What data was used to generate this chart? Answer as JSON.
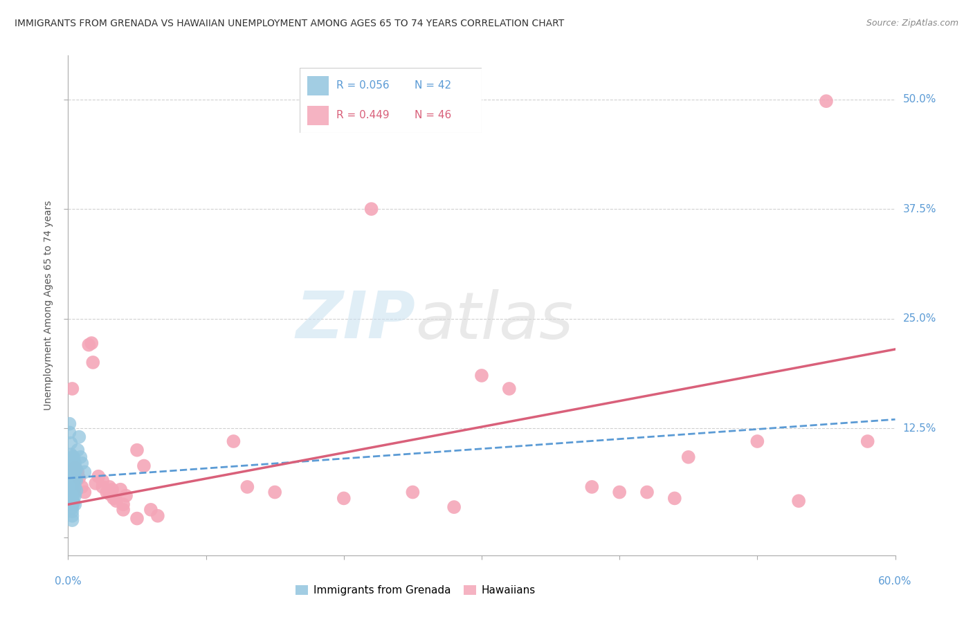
{
  "title": "IMMIGRANTS FROM GRENADA VS HAWAIIAN UNEMPLOYMENT AMONG AGES 65 TO 74 YEARS CORRELATION CHART",
  "source": "Source: ZipAtlas.com",
  "ylabel_label": "Unemployment Among Ages 65 to 74 years",
  "xlim": [
    0.0,
    0.6
  ],
  "ylim": [
    -0.02,
    0.55
  ],
  "xticks": [
    0.0,
    0.1,
    0.2,
    0.3,
    0.4,
    0.5,
    0.6
  ],
  "yticks": [
    0.0,
    0.125,
    0.25,
    0.375,
    0.5
  ],
  "ytick_labels_right": [
    "",
    "12.5%",
    "25.0%",
    "37.5%",
    "50.0%"
  ],
  "legend_blue_r": "R = 0.056",
  "legend_blue_n": "N = 42",
  "legend_pink_r": "R = 0.449",
  "legend_pink_n": "N = 46",
  "blue_color": "#92c5de",
  "pink_color": "#f4a6b8",
  "blue_line_color": "#5b9bd5",
  "pink_line_color": "#d9607a",
  "blue_scatter": [
    [
      0.001,
      0.13
    ],
    [
      0.001,
      0.12
    ],
    [
      0.002,
      0.108
    ],
    [
      0.002,
      0.095
    ],
    [
      0.003,
      0.093
    ],
    [
      0.003,
      0.088
    ],
    [
      0.003,
      0.082
    ],
    [
      0.003,
      0.076
    ],
    [
      0.003,
      0.07
    ],
    [
      0.003,
      0.065
    ],
    [
      0.003,
      0.06
    ],
    [
      0.003,
      0.055
    ],
    [
      0.003,
      0.05
    ],
    [
      0.003,
      0.046
    ],
    [
      0.003,
      0.042
    ],
    [
      0.003,
      0.038
    ],
    [
      0.003,
      0.034
    ],
    [
      0.003,
      0.03
    ],
    [
      0.003,
      0.025
    ],
    [
      0.003,
      0.02
    ],
    [
      0.004,
      0.092
    ],
    [
      0.004,
      0.085
    ],
    [
      0.004,
      0.078
    ],
    [
      0.004,
      0.07
    ],
    [
      0.004,
      0.063
    ],
    [
      0.004,
      0.056
    ],
    [
      0.004,
      0.048
    ],
    [
      0.004,
      0.04
    ],
    [
      0.005,
      0.085
    ],
    [
      0.005,
      0.076
    ],
    [
      0.005,
      0.067
    ],
    [
      0.005,
      0.058
    ],
    [
      0.005,
      0.048
    ],
    [
      0.005,
      0.038
    ],
    [
      0.006,
      0.078
    ],
    [
      0.006,
      0.066
    ],
    [
      0.006,
      0.054
    ],
    [
      0.007,
      0.1
    ],
    [
      0.008,
      0.115
    ],
    [
      0.009,
      0.092
    ],
    [
      0.01,
      0.085
    ],
    [
      0.012,
      0.075
    ]
  ],
  "pink_scatter": [
    [
      0.003,
      0.17
    ],
    [
      0.005,
      0.08
    ],
    [
      0.007,
      0.075
    ],
    [
      0.008,
      0.068
    ],
    [
      0.01,
      0.058
    ],
    [
      0.012,
      0.052
    ],
    [
      0.015,
      0.22
    ],
    [
      0.017,
      0.222
    ],
    [
      0.018,
      0.2
    ],
    [
      0.02,
      0.062
    ],
    [
      0.022,
      0.07
    ],
    [
      0.025,
      0.065
    ],
    [
      0.025,
      0.058
    ],
    [
      0.028,
      0.052
    ],
    [
      0.03,
      0.058
    ],
    [
      0.03,
      0.05
    ],
    [
      0.032,
      0.055
    ],
    [
      0.033,
      0.045
    ],
    [
      0.035,
      0.042
    ],
    [
      0.038,
      0.055
    ],
    [
      0.04,
      0.038
    ],
    [
      0.04,
      0.032
    ],
    [
      0.042,
      0.048
    ],
    [
      0.05,
      0.1
    ],
    [
      0.05,
      0.022
    ],
    [
      0.055,
      0.082
    ],
    [
      0.06,
      0.032
    ],
    [
      0.065,
      0.025
    ],
    [
      0.12,
      0.11
    ],
    [
      0.13,
      0.058
    ],
    [
      0.15,
      0.052
    ],
    [
      0.2,
      0.045
    ],
    [
      0.22,
      0.375
    ],
    [
      0.25,
      0.052
    ],
    [
      0.28,
      0.035
    ],
    [
      0.3,
      0.185
    ],
    [
      0.32,
      0.17
    ],
    [
      0.38,
      0.058
    ],
    [
      0.4,
      0.052
    ],
    [
      0.42,
      0.052
    ],
    [
      0.44,
      0.045
    ],
    [
      0.45,
      0.092
    ],
    [
      0.5,
      0.11
    ],
    [
      0.53,
      0.042
    ],
    [
      0.55,
      0.498
    ],
    [
      0.58,
      0.11
    ]
  ],
  "blue_trend": [
    0.0,
    0.068,
    0.6,
    0.135
  ],
  "pink_trend": [
    0.0,
    0.038,
    0.6,
    0.215
  ],
  "background_color": "#ffffff",
  "grid_color": "#d0d0d0"
}
